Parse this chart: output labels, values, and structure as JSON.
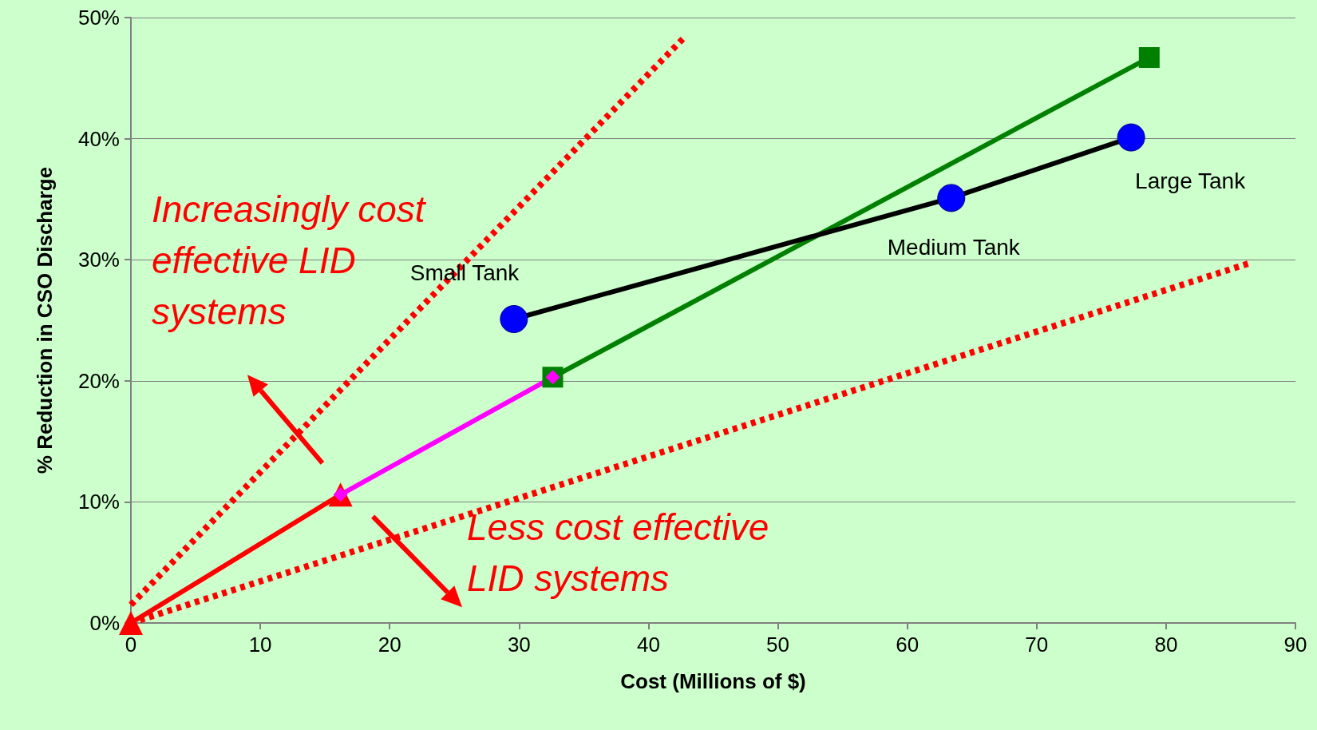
{
  "chart_data": {
    "type": "line",
    "xlabel": "Cost (Millions of $)",
    "ylabel": "% Reduction in CSO Discharge",
    "xlim": [
      0,
      90
    ],
    "xticks": [
      0,
      10,
      20,
      30,
      40,
      50,
      60,
      70,
      80,
      90
    ],
    "ylim": [
      0,
      50
    ],
    "yticks": [
      {
        "value": 0,
        "label": "0%"
      },
      {
        "value": 10,
        "label": "10%"
      },
      {
        "value": 20,
        "label": "20%"
      },
      {
        "value": 30,
        "label": "30%"
      },
      {
        "value": 40,
        "label": "40%"
      },
      {
        "value": 50,
        "label": "50%"
      }
    ],
    "grid": "y",
    "series": [
      {
        "x": [
          0,
          42.8
        ],
        "values": [
          1.5,
          48.4
        ],
        "color": "#ff0000",
        "line_style": "dotted"
      },
      {
        "x": [
          0,
          86.4
        ],
        "values": [
          0,
          29.7
        ],
        "color": "#ff0000",
        "line_style": "dotted"
      },
      {
        "x": [
          0,
          16.2
        ],
        "values": [
          0,
          10.6
        ],
        "color": "#ff0000",
        "line_style": "solid",
        "marker": "triangle"
      },
      {
        "x": [
          32.6,
          78.7
        ],
        "values": [
          20.3,
          46.7
        ],
        "color": "#008000",
        "line_style": "solid",
        "marker": "square"
      },
      {
        "x": [
          16.2,
          32.6
        ],
        "values": [
          10.6,
          20.3
        ],
        "color": "#ff00ff",
        "line_style": "solid",
        "marker": "diamond"
      },
      {
        "x": [
          29.6,
          63.4,
          77.3
        ],
        "values": [
          25.1,
          35.1,
          40.1
        ],
        "color": "#000000",
        "colors": [
          "#0000ff",
          "#0000ff",
          "#0000ff"
        ],
        "line_style": "solid",
        "marker": "circle"
      }
    ],
    "annotations": [
      "Increasingly cost effective LID systems",
      "Less cost effective LID systems",
      {
        "text": "Small Tank",
        "x": 29.6,
        "y": 25.1
      },
      {
        "text": "Medium Tank",
        "x": 63.4,
        "y": 35.1
      },
      {
        "text": "Large Tank",
        "x": 77.3,
        "y": 40.1
      }
    ]
  }
}
